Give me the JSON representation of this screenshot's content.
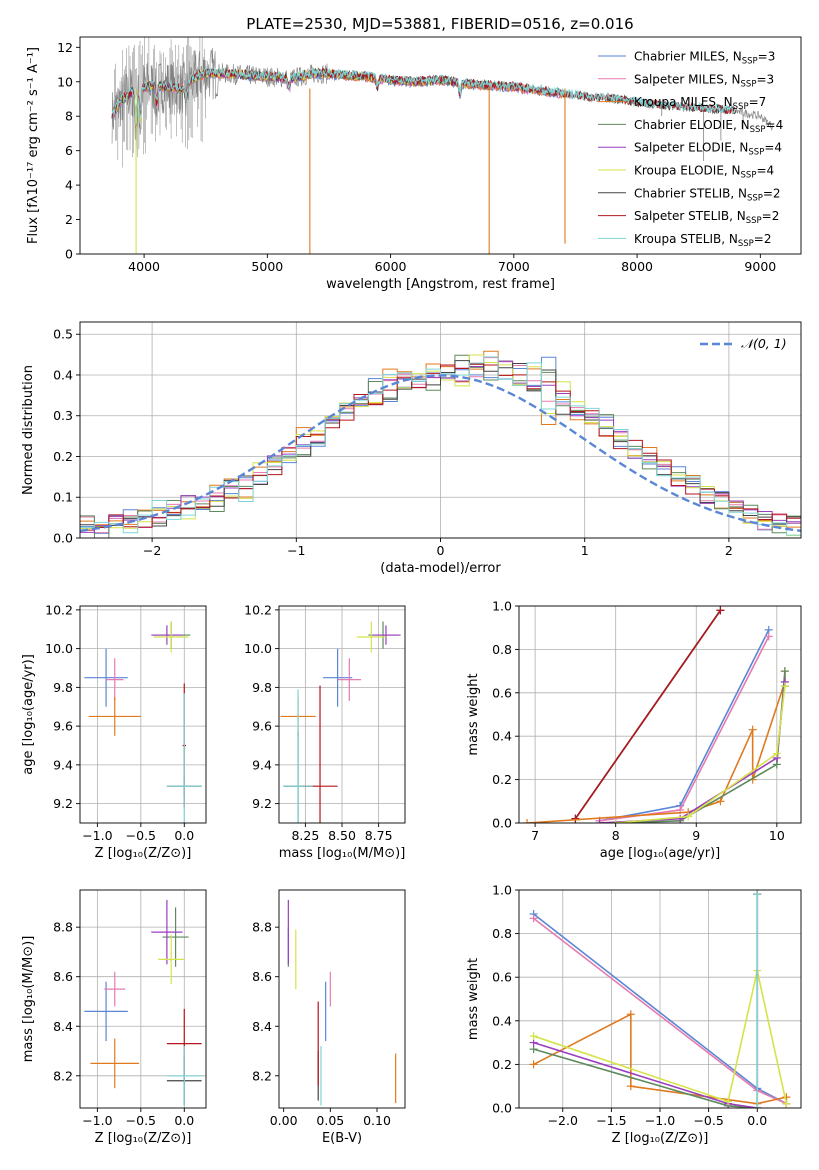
{
  "figure": {
    "title": "PLATE=2530, MJD=53881, FIBERID=0516, z=0.016",
    "colors": {
      "Chabrier MILES": "#5a86d6",
      "Salpeter MILES": "#e57bb0",
      "Kroupa MILES": "#e07a1f",
      "Chabrier ELODIE": "#5e8a5e",
      "Salpeter ELODIE": "#9b3fbf",
      "Kroupa ELODIE": "#d5e34a",
      "Chabrier STELIB": "#444444",
      "Salpeter STELIB": "#b3161c",
      "Kroupa STELIB": "#7fd6d6",
      "data": "#808080",
      "gaussian": "#5a86d6"
    }
  },
  "chart_data": [
    {
      "id": "spectrum",
      "type": "line",
      "xlabel": "wavelength [Angstrom, rest frame]",
      "ylabel": "Flux [fλ10⁻¹⁷ erg cm⁻² s⁻¹ A⁻¹]",
      "xlim": [
        3480,
        9330
      ],
      "ylim": [
        0,
        12.6
      ],
      "xticks": [
        4000,
        5000,
        6000,
        7000,
        8000,
        9000
      ],
      "yticks": [
        0,
        2,
        4,
        6,
        8,
        10,
        12
      ],
      "legend_position": "top-right",
      "continuum": {
        "x": [
          3740,
          3800,
          3900,
          4000,
          4100,
          4200,
          4300,
          4400,
          4500,
          4600,
          4800,
          5000,
          5200,
          5400,
          5600,
          5800,
          6000,
          6200,
          6400,
          6600,
          6800,
          7000,
          7200,
          7400,
          7600,
          7800,
          8000,
          8200,
          8400,
          8600,
          8800,
          9000,
          9100
        ],
        "y": [
          8.0,
          8.8,
          9.4,
          9.7,
          9.8,
          9.7,
          9.6,
          10.2,
          10.5,
          10.5,
          10.4,
          10.3,
          10.2,
          10.5,
          10.4,
          10.3,
          10.1,
          10.0,
          10.1,
          9.9,
          9.8,
          9.7,
          9.5,
          9.3,
          9.1,
          9.0,
          8.8,
          8.6,
          8.5,
          8.4,
          8.3,
          8.0,
          7.4
        ]
      },
      "absorption_features": [
        {
          "x": 3934,
          "depth": 2.4
        },
        {
          "x": 3969,
          "depth": 2.0
        },
        {
          "x": 4102,
          "depth": 1.2
        },
        {
          "x": 4340,
          "depth": 1.0
        },
        {
          "x": 5175,
          "depth": 0.6
        },
        {
          "x": 5893,
          "depth": 0.6
        },
        {
          "x": 6563,
          "depth": 0.7
        }
      ],
      "model_spikes": [
        {
          "x": 3935,
          "to": 0.0,
          "series": "Kroupa ELODIE"
        },
        {
          "x": 5345,
          "to": 0.0,
          "series": "Kroupa MILES"
        },
        {
          "x": 6800,
          "to": 0.0,
          "series": "Kroupa MILES"
        },
        {
          "x": 7415,
          "to": 0.6,
          "series": "Kroupa MILES"
        }
      ],
      "data_dips": [
        {
          "x": 8200,
          "to": 8.0
        },
        {
          "x": 8540,
          "to": 5.4
        },
        {
          "x": 8680,
          "to": 6.6
        },
        {
          "x": 8860,
          "to": 7.2
        }
      ],
      "model_coverage": {
        "MILES": [
          3740,
          7420
        ],
        "ELODIE": [
          3740,
          6800
        ],
        "STELIB": [
          3740,
          8800
        ]
      },
      "data_range": [
        3740,
        9100
      ],
      "series": [
        {
          "name": "Chabrier MILES",
          "nssp": "3"
        },
        {
          "name": "Salpeter MILES",
          "nssp": "3"
        },
        {
          "name": "Kroupa MILES",
          "nssp": "7"
        },
        {
          "name": "Chabrier ELODIE",
          "nssp": "4"
        },
        {
          "name": "Salpeter ELODIE",
          "nssp": "4"
        },
        {
          "name": "Kroupa ELODIE",
          "nssp": "4"
        },
        {
          "name": "Chabrier STELIB",
          "nssp": "2"
        },
        {
          "name": "Salpeter STELIB",
          "nssp": "2"
        },
        {
          "name": "Kroupa STELIB",
          "nssp": "2"
        }
      ],
      "nssp_label": "N",
      "nssp_sub": "SSP"
    },
    {
      "id": "residuals",
      "type": "line",
      "xlabel": "(data-model)/error",
      "ylabel": "Normed distribution",
      "xlim": [
        -2.5,
        2.5
      ],
      "ylim": [
        0,
        0.53
      ],
      "xticks": [
        -2,
        -1,
        0,
        1,
        2
      ],
      "yticks": [
        0.0,
        0.1,
        0.2,
        0.3,
        0.4,
        0.5
      ],
      "grid": true,
      "legend": "𝒩(0, 1)",
      "legend_position": "top-right",
      "bin_width": 0.1,
      "bin_start": -2.5,
      "histogram_base": [
        0.03,
        0.03,
        0.04,
        0.04,
        0.05,
        0.06,
        0.07,
        0.08,
        0.09,
        0.1,
        0.12,
        0.13,
        0.15,
        0.18,
        0.2,
        0.23,
        0.25,
        0.29,
        0.31,
        0.33,
        0.35,
        0.37,
        0.38,
        0.38,
        0.4,
        0.4,
        0.41,
        0.42,
        0.42,
        0.41,
        0.4,
        0.39,
        0.36,
        0.34,
        0.31,
        0.29,
        0.27,
        0.24,
        0.22,
        0.19,
        0.17,
        0.15,
        0.13,
        0.11,
        0.09,
        0.07,
        0.05,
        0.04,
        0.04,
        0.03
      ],
      "histogram_offsets": [
        [
          0.0,
          0.01,
          0.0,
          -0.01,
          0.0,
          0.01,
          0.0,
          -0.01,
          0.0,
          0.01,
          0.0,
          -0.02,
          0.01,
          0.0,
          -0.01,
          0.02,
          0.0,
          0.02,
          0.0,
          0.01,
          -0.02,
          0.02,
          0.01,
          0.0,
          0.02,
          0.0,
          -0.02,
          0.01,
          0.02,
          0.0,
          -0.01,
          0.02,
          -0.06,
          0.02,
          0.0,
          0.01,
          -0.02,
          0.01,
          0.0,
          0.01,
          0.0,
          -0.01,
          0.0,
          0.01,
          0.0,
          0.0,
          -0.01,
          0.0,
          0.01,
          0.0
        ]
      ],
      "gaussian": {
        "mu": 0,
        "sigma": 1
      }
    },
    {
      "id": "age-vs-Z",
      "type": "scatter",
      "xlabel": "Z [log₁₀(Z/Z⊙)]",
      "ylabel": "age  [log₁₀(age/yr)]",
      "xlim": [
        -1.2,
        0.25
      ],
      "ylim": [
        9.1,
        10.22
      ],
      "xticks": [
        -1.0,
        -0.5,
        0.0
      ],
      "yticks": [
        9.2,
        9.4,
        9.6,
        9.8,
        10.0,
        10.2
      ],
      "grid": true,
      "points": [
        {
          "series": "Chabrier MILES",
          "x": -0.9,
          "y": 9.85,
          "xerr": 0.25,
          "yerr": 0.15
        },
        {
          "series": "Salpeter MILES",
          "x": -0.8,
          "y": 9.84,
          "xerr": 0.1,
          "yerr": 0.11
        },
        {
          "series": "Kroupa MILES",
          "x": -0.8,
          "y": 9.65,
          "xerr": 0.3,
          "yerr": 0.1
        },
        {
          "series": "Chabrier ELODIE",
          "x": -0.15,
          "y": 10.07,
          "xerr": 0.22,
          "yerr": 0.07
        },
        {
          "series": "Salpeter ELODIE",
          "x": -0.2,
          "y": 10.07,
          "xerr": 0.18,
          "yerr": 0.05
        },
        {
          "series": "Kroupa ELODIE",
          "x": -0.15,
          "y": 10.06,
          "xerr": 0.2,
          "yerr": 0.08
        },
        {
          "series": "Chabrier STELIB",
          "x": 0.0,
          "y": 9.29,
          "xerr": 0.2,
          "yerr": 0.05
        },
        {
          "series": "Salpeter STELIB",
          "x": 0.0,
          "y": 9.5,
          "xerr": 0.02,
          "yerr": 0.32
        },
        {
          "series": "Kroupa STELIB",
          "x": 0.0,
          "y": 9.29,
          "xerr": 0.2,
          "yerr": 0.48
        }
      ]
    },
    {
      "id": "age-vs-mass",
      "type": "scatter",
      "xlabel": "mass [log₁₀(M/M⊙)]",
      "ylabel": "",
      "xlim": [
        8.07,
        8.93
      ],
      "ylim": [
        9.1,
        10.22
      ],
      "xticks": [
        8.25,
        8.5,
        8.75
      ],
      "yticks": [
        9.2,
        9.4,
        9.6,
        9.8,
        10.0,
        10.2
      ],
      "grid": true,
      "points": [
        {
          "series": "Chabrier MILES",
          "x": 8.47,
          "y": 9.85,
          "xerr": 0.1,
          "yerr": 0.15
        },
        {
          "series": "Salpeter MILES",
          "x": 8.55,
          "y": 9.84,
          "xerr": 0.08,
          "yerr": 0.11
        },
        {
          "series": "Kroupa MILES",
          "x": 8.2,
          "y": 9.65,
          "xerr": 0.12,
          "yerr": 0.1
        },
        {
          "series": "Chabrier ELODIE",
          "x": 8.78,
          "y": 10.07,
          "xerr": 0.1,
          "yerr": 0.07
        },
        {
          "series": "Salpeter ELODIE",
          "x": 8.8,
          "y": 10.07,
          "xerr": 0.1,
          "yerr": 0.05
        },
        {
          "series": "Kroupa ELODIE",
          "x": 8.7,
          "y": 10.06,
          "xerr": 0.1,
          "yerr": 0.08
        },
        {
          "series": "Chabrier STELIB",
          "x": 8.2,
          "y": 9.29,
          "xerr": 0.1,
          "yerr": 0.28
        },
        {
          "series": "Salpeter STELIB",
          "x": 8.35,
          "y": 9.29,
          "xerr": 0.12,
          "yerr": 0.52
        },
        {
          "series": "Kroupa STELIB",
          "x": 8.2,
          "y": 9.29,
          "xerr": 0.1,
          "yerr": 0.5
        }
      ]
    },
    {
      "id": "weight-vs-age",
      "type": "line",
      "xlabel": "age  [log₁₀(age/yr)]",
      "ylabel": "mass weight",
      "xlim": [
        6.8,
        10.3
      ],
      "ylim": [
        0,
        1.0
      ],
      "xticks": [
        7,
        8,
        9,
        10
      ],
      "yticks": [
        0.0,
        0.2,
        0.4,
        0.6,
        0.8,
        1.0
      ],
      "grid": true,
      "series": [
        {
          "name": "Kroupa STELIB",
          "x": [
            7.5,
            9.3
          ],
          "y": [
            0.02,
            0.98
          ]
        },
        {
          "name": "Chabrier STELIB",
          "x": [
            7.5,
            9.3
          ],
          "y": [
            0.02,
            0.98
          ]
        },
        {
          "name": "Salpeter STELIB",
          "x": [
            7.5,
            9.3
          ],
          "y": [
            0.02,
            0.98
          ]
        },
        {
          "name": "Chabrier MILES",
          "x": [
            7.8,
            8.8,
            9.9
          ],
          "y": [
            0.01,
            0.08,
            0.89
          ]
        },
        {
          "name": "Salpeter MILES",
          "x": [
            7.8,
            8.8,
            9.9
          ],
          "y": [
            0.01,
            0.06,
            0.86
          ]
        },
        {
          "name": "Kroupa MILES",
          "x": [
            6.9,
            8.9,
            9.3,
            9.7,
            9.7,
            10.1,
            10.1
          ],
          "y": [
            0.0,
            0.05,
            0.1,
            0.43,
            0.2,
            0.65,
            0.7
          ]
        },
        {
          "name": "Chabrier ELODIE",
          "x": [
            8.0,
            8.8,
            10.0,
            10.1,
            10.1
          ],
          "y": [
            0.0,
            0.01,
            0.27,
            0.7,
            0.63
          ]
        },
        {
          "name": "Salpeter ELODIE",
          "x": [
            7.8,
            8.8,
            10.0,
            10.1
          ],
          "y": [
            0.0,
            0.02,
            0.3,
            0.65
          ]
        },
        {
          "name": "Kroupa ELODIE",
          "x": [
            8.0,
            8.9,
            10.0,
            10.1
          ],
          "y": [
            0.0,
            0.03,
            0.32,
            0.63
          ]
        }
      ]
    },
    {
      "id": "mass-vs-Z",
      "type": "scatter",
      "xlabel": "Z [log₁₀(Z/Z⊙)]",
      "ylabel": "mass [log₁₀(M/M⊙)]",
      "xlim": [
        -1.2,
        0.25
      ],
      "ylim": [
        8.07,
        8.95
      ],
      "xticks": [
        -1.0,
        -0.5,
        0.0
      ],
      "yticks": [
        8.2,
        8.4,
        8.6,
        8.8
      ],
      "grid": true,
      "points": [
        {
          "series": "Chabrier MILES",
          "x": -0.9,
          "y": 8.46,
          "xerr": 0.25,
          "yerr": 0.12
        },
        {
          "series": "Salpeter MILES",
          "x": -0.8,
          "y": 8.55,
          "xerr": 0.12,
          "yerr": 0.07
        },
        {
          "series": "Kroupa MILES",
          "x": -0.8,
          "y": 8.25,
          "xerr": 0.28,
          "yerr": 0.1
        },
        {
          "series": "Chabrier ELODIE",
          "x": -0.1,
          "y": 8.76,
          "xerr": 0.15,
          "yerr": 0.12
        },
        {
          "series": "Salpeter ELODIE",
          "x": -0.2,
          "y": 8.78,
          "xerr": 0.18,
          "yerr": 0.13
        },
        {
          "series": "Kroupa ELODIE",
          "x": -0.15,
          "y": 8.67,
          "xerr": 0.15,
          "yerr": 0.1
        },
        {
          "series": "Chabrier STELIB",
          "x": 0.0,
          "y": 8.18,
          "xerr": 0.2,
          "yerr": 0.1
        },
        {
          "series": "Salpeter STELIB",
          "x": 0.0,
          "y": 8.33,
          "xerr": 0.2,
          "yerr": 0.14
        },
        {
          "series": "Kroupa STELIB",
          "x": 0.0,
          "y": 8.2,
          "xerr": 0.2,
          "yerr": 0.12
        }
      ]
    },
    {
      "id": "mass-vs-ebv",
      "type": "scatter",
      "xlabel": "E(B-V)",
      "ylabel": "",
      "xlim": [
        -0.005,
        0.13
      ],
      "ylim": [
        8.07,
        8.95
      ],
      "xticks": [
        0.0,
        0.05,
        0.1
      ],
      "yticks": [
        8.2,
        8.4,
        8.6,
        8.8
      ],
      "grid": false,
      "points": [
        {
          "series": "Chabrier MILES",
          "x": 0.045,
          "y": 8.46,
          "xerr": 0,
          "yerr": 0.12
        },
        {
          "series": "Salpeter MILES",
          "x": 0.05,
          "y": 8.55,
          "xerr": 0,
          "yerr": 0.07
        },
        {
          "series": "Kroupa MILES",
          "x": 0.12,
          "y": 8.19,
          "xerr": 0,
          "yerr": 0.1
        },
        {
          "series": "Chabrier ELODIE",
          "x": 0.005,
          "y": 8.72,
          "xerr": 0,
          "yerr": 0.08
        },
        {
          "series": "Salpeter ELODIE",
          "x": 0.005,
          "y": 8.78,
          "xerr": 0,
          "yerr": 0.13
        },
        {
          "series": "Kroupa ELODIE",
          "x": 0.013,
          "y": 8.67,
          "xerr": 0,
          "yerr": 0.12
        },
        {
          "series": "Chabrier STELIB",
          "x": 0.037,
          "y": 8.2,
          "xerr": 0,
          "yerr": 0.1
        },
        {
          "series": "Salpeter STELIB",
          "x": 0.037,
          "y": 8.33,
          "xerr": 0,
          "yerr": 0.17
        },
        {
          "series": "Kroupa STELIB",
          "x": 0.04,
          "y": 8.2,
          "xerr": 0,
          "yerr": 0.12
        }
      ]
    },
    {
      "id": "weight-vs-Z",
      "type": "line",
      "xlabel": "Z [log₁₀(Z/Z⊙)]",
      "ylabel": "mass weight",
      "xlim": [
        -2.45,
        0.45
      ],
      "ylim": [
        0,
        1.0
      ],
      "xticks": [
        -2.0,
        -1.5,
        -1.0,
        -0.5,
        0.0
      ],
      "yticks": [
        0.0,
        0.2,
        0.4,
        0.6,
        0.8,
        1.0
      ],
      "grid": true,
      "series": [
        {
          "name": "Chabrier MILES",
          "x": [
            -2.3,
            0.0,
            0.3
          ],
          "y": [
            0.89,
            0.09,
            0.02
          ]
        },
        {
          "name": "Salpeter MILES",
          "x": [
            -2.3,
            0.0,
            0.3
          ],
          "y": [
            0.87,
            0.08,
            0.02
          ]
        },
        {
          "name": "Kroupa MILES",
          "x": [
            -2.3,
            -1.3,
            -1.3,
            0.0,
            0.3,
            0.3
          ],
          "y": [
            0.2,
            0.43,
            0.1,
            0.02,
            0.05,
            0.02
          ]
        },
        {
          "name": "Chabrier ELODIE",
          "x": [
            -2.3,
            -0.3,
            0.0
          ],
          "y": [
            0.27,
            0.01,
            0.0
          ]
        },
        {
          "name": "Salpeter ELODIE",
          "x": [
            -2.3,
            -0.3,
            0.0
          ],
          "y": [
            0.3,
            0.02,
            0.0
          ]
        },
        {
          "name": "Kroupa ELODIE",
          "x": [
            -2.3,
            -0.3,
            0.0,
            0.3
          ],
          "y": [
            0.33,
            0.03,
            0.63,
            0.02
          ]
        },
        {
          "name": "Chabrier STELIB",
          "x": [
            0.0,
            0.0
          ],
          "y": [
            0.0,
            0.98
          ]
        },
        {
          "name": "Salpeter STELIB",
          "x": [
            0.0,
            0.0
          ],
          "y": [
            0.0,
            0.98
          ]
        },
        {
          "name": "Kroupa STELIB",
          "x": [
            0.0,
            0.0
          ],
          "y": [
            0.0,
            0.98
          ]
        }
      ]
    }
  ]
}
